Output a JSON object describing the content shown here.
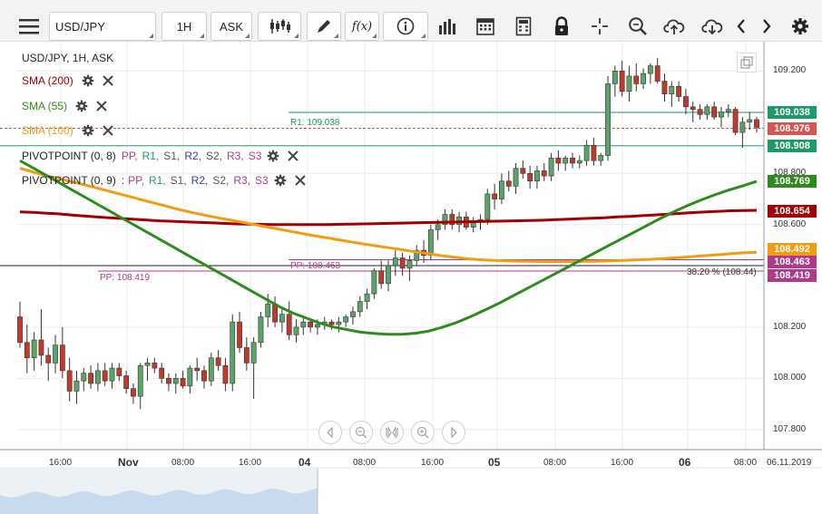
{
  "toolbar": {
    "symbol_value": "USD/JPY",
    "timeframe": "1H",
    "price_type": "ASK",
    "fx_label": "f(x)",
    "buttons": [
      "menu-icon",
      "candles-icon",
      "draw-icon",
      "fx-icon",
      "info-icon",
      "bars-icon",
      "calendar-icon",
      "calculator-icon",
      "lock-icon",
      "crosshair-icon",
      "zoom-icon",
      "upload-icon",
      "download-icon",
      "prev-icon",
      "next-icon",
      "gear-icon"
    ]
  },
  "legend": {
    "instrument": "USD/JPY, 1H, ASK",
    "sma200": "SMA (200)",
    "sma55": "SMA (55)",
    "sma100": "SMA (100)",
    "pivot1": "PIVOTPOINT (0, 8)",
    "pivot1_ovl": "0.8",
    "pivot2": "PIVOTPOINT (0, 9)",
    "pivot_sep": ":",
    "parts": [
      "PP,",
      "R1,",
      "S1,",
      "R2,",
      "S2,",
      "R3,",
      "S3"
    ]
  },
  "colors": {
    "sma200": "#a00000",
    "sma55": "#2e8b1e",
    "sma100": "#f39c12",
    "bull": "#5aa469",
    "bear": "#c0392b",
    "r1": "#1e9a66",
    "pp": "#b03a8a",
    "pp_parts": [
      "#b03a8a",
      "#1e9a66",
      "#555555",
      "#3c3ca8",
      "#555555",
      "#b03a8a",
      "#b03a8a"
    ]
  },
  "chart_labels": {
    "r1": "R1: 109.038",
    "pp1": "PP: 108.463",
    "pp2": "PP: 108.419",
    "fib": "38.20 % (108.44)"
  },
  "price_tags": [
    {
      "label": "109.038",
      "price": 109.038,
      "bg": "#1e9a66"
    },
    {
      "label": "108.976",
      "price": 108.976,
      "bg": "#d9534f"
    },
    {
      "label": "108.908",
      "price": 108.908,
      "bg": "#1e9a66"
    },
    {
      "label": "108.769",
      "price": 108.769,
      "bg": "#2e8b1e"
    },
    {
      "label": "108.654",
      "price": 108.654,
      "bg": "#a00000"
    },
    {
      "label": "108.492",
      "price": 108.492,
      "bg": "#f39c12"
    },
    {
      "label": "108.463",
      "price": 108.463,
      "bg": "#b03a8a"
    },
    {
      "label": "108.419",
      "price": 108.419,
      "bg": "#b03a8a"
    }
  ],
  "y_axis": {
    "ticks": [
      "109.200",
      "108.800",
      "108.600",
      "108.200",
      "108.000",
      "107.800"
    ],
    "tick_values": [
      109.2,
      108.8,
      108.6,
      108.2,
      108.0,
      107.8
    ]
  },
  "x_axis": {
    "ticks": [
      {
        "label": "16:00",
        "bold": false
      },
      {
        "label": "Nov",
        "bold": true
      },
      {
        "label": "08:00",
        "bold": false
      },
      {
        "label": "16:00",
        "bold": false
      },
      {
        "label": "04",
        "bold": true
      },
      {
        "label": "08:00",
        "bold": false
      },
      {
        "label": "16:00",
        "bold": false
      },
      {
        "label": "05",
        "bold": true
      },
      {
        "label": "08:00",
        "bold": false
      },
      {
        "label": "16:00",
        "bold": false
      },
      {
        "label": "06",
        "bold": true
      },
      {
        "label": "08:00",
        "bold": false
      }
    ],
    "date_label": "06.11.2019"
  },
  "nav": [
    "prev-icon",
    "zoom-out-icon",
    "reset-zoom-icon",
    "zoom-in-icon",
    "next-icon"
  ],
  "chart_data": {
    "type": "candlestick",
    "title": "USD/JPY, 1H, ASK",
    "ylim": [
      107.75,
      109.3
    ],
    "candles": [
      [
        108.24,
        108.3,
        108.12,
        108.14
      ],
      [
        108.14,
        108.21,
        108.02,
        108.08
      ],
      [
        108.08,
        108.18,
        108.03,
        108.15
      ],
      [
        108.15,
        108.27,
        108.05,
        108.09
      ],
      [
        108.09,
        108.12,
        107.99,
        108.06
      ],
      [
        108.06,
        108.17,
        108.02,
        108.13
      ],
      [
        108.13,
        108.2,
        108.0,
        108.03
      ],
      [
        108.03,
        108.08,
        107.91,
        107.95
      ],
      [
        107.95,
        108.03,
        107.9,
        107.99
      ],
      [
        107.99,
        108.04,
        107.95,
        108.02
      ],
      [
        108.02,
        108.05,
        107.96,
        107.98
      ],
      [
        107.98,
        108.06,
        107.95,
        108.03
      ],
      [
        108.03,
        108.06,
        107.97,
        107.99
      ],
      [
        107.99,
        108.06,
        107.96,
        108.04
      ],
      [
        108.04,
        108.06,
        107.99,
        108.01
      ],
      [
        108.01,
        108.03,
        107.94,
        107.96
      ],
      [
        107.96,
        107.98,
        107.9,
        107.93
      ],
      [
        107.93,
        108.06,
        107.88,
        108.05
      ],
      [
        108.05,
        108.08,
        107.99,
        108.06
      ],
      [
        108.06,
        108.08,
        108.02,
        108.04
      ],
      [
        108.04,
        108.06,
        107.98,
        108.0
      ],
      [
        108.0,
        108.02,
        107.95,
        107.98
      ],
      [
        107.98,
        108.02,
        107.94,
        108.0
      ],
      [
        108.0,
        108.03,
        107.96,
        107.97
      ],
      [
        107.97,
        108.05,
        107.94,
        108.04
      ],
      [
        108.04,
        108.08,
        107.99,
        108.03
      ],
      [
        108.03,
        108.05,
        107.96,
        107.99
      ],
      [
        107.99,
        108.1,
        107.97,
        108.08
      ],
      [
        108.08,
        108.11,
        108.03,
        108.05
      ],
      [
        108.05,
        108.08,
        107.95,
        107.98
      ],
      [
        107.98,
        108.25,
        107.95,
        108.22
      ],
      [
        108.22,
        108.26,
        108.1,
        108.12
      ],
      [
        108.12,
        108.16,
        108.03,
        108.06
      ],
      [
        108.06,
        108.16,
        107.92,
        108.14
      ],
      [
        108.14,
        108.26,
        108.12,
        108.24
      ],
      [
        108.24,
        108.33,
        108.2,
        108.29
      ],
      [
        108.29,
        108.32,
        108.2,
        108.22
      ],
      [
        108.22,
        108.28,
        108.18,
        108.25
      ],
      [
        108.25,
        108.3,
        108.15,
        108.17
      ],
      [
        108.17,
        108.23,
        108.14,
        108.2
      ],
      [
        108.2,
        108.24,
        108.17,
        108.22
      ],
      [
        108.22,
        108.23,
        108.18,
        108.2
      ],
      [
        108.2,
        108.23,
        108.17,
        108.21
      ],
      [
        108.21,
        108.24,
        108.19,
        108.22
      ],
      [
        108.22,
        108.23,
        108.19,
        108.21
      ],
      [
        108.21,
        108.24,
        108.18,
        108.22
      ],
      [
        108.22,
        108.25,
        108.2,
        108.24
      ],
      [
        108.24,
        108.28,
        108.21,
        108.26
      ],
      [
        108.26,
        108.32,
        108.24,
        108.3
      ],
      [
        108.3,
        108.35,
        108.27,
        108.33
      ],
      [
        108.33,
        108.43,
        108.31,
        108.42
      ],
      [
        108.42,
        108.46,
        108.35,
        108.37
      ],
      [
        108.37,
        108.46,
        108.34,
        108.44
      ],
      [
        108.44,
        108.5,
        108.4,
        108.47
      ],
      [
        108.47,
        108.49,
        108.4,
        108.43
      ],
      [
        108.43,
        108.48,
        108.38,
        108.46
      ],
      [
        108.46,
        108.52,
        108.44,
        108.5
      ],
      [
        108.5,
        108.54,
        108.45,
        108.48
      ],
      [
        108.48,
        108.6,
        108.46,
        108.58
      ],
      [
        108.58,
        108.62,
        108.54,
        108.6
      ],
      [
        108.6,
        108.66,
        108.58,
        108.64
      ],
      [
        108.64,
        108.66,
        108.58,
        108.6
      ],
      [
        108.6,
        108.65,
        108.57,
        108.63
      ],
      [
        108.63,
        108.65,
        108.58,
        108.59
      ],
      [
        108.59,
        108.63,
        108.57,
        108.61
      ],
      [
        108.61,
        108.64,
        108.58,
        108.62
      ],
      [
        108.62,
        108.74,
        108.6,
        108.72
      ],
      [
        108.72,
        108.76,
        108.66,
        108.7
      ],
      [
        108.7,
        108.8,
        108.68,
        108.77
      ],
      [
        108.77,
        108.81,
        108.73,
        108.75
      ],
      [
        108.75,
        108.84,
        108.72,
        108.82
      ],
      [
        108.82,
        108.85,
        108.78,
        108.8
      ],
      [
        108.8,
        108.83,
        108.74,
        108.77
      ],
      [
        108.77,
        108.83,
        108.74,
        108.81
      ],
      [
        108.81,
        108.84,
        108.77,
        108.79
      ],
      [
        108.79,
        108.88,
        108.77,
        108.86
      ],
      [
        108.86,
        108.89,
        108.81,
        108.84
      ],
      [
        108.84,
        108.87,
        108.81,
        108.86
      ],
      [
        108.86,
        108.88,
        108.82,
        108.84
      ],
      [
        108.84,
        108.87,
        108.82,
        108.85
      ],
      [
        108.85,
        108.93,
        108.83,
        108.91
      ],
      [
        108.91,
        108.94,
        108.83,
        108.85
      ],
      [
        108.85,
        108.88,
        108.83,
        108.87
      ],
      [
        108.87,
        109.18,
        108.85,
        109.15
      ],
      [
        109.15,
        109.22,
        109.1,
        109.2
      ],
      [
        109.2,
        109.24,
        109.1,
        109.12
      ],
      [
        109.12,
        109.22,
        109.08,
        109.18
      ],
      [
        109.18,
        109.23,
        109.12,
        109.15
      ],
      [
        109.15,
        109.21,
        109.13,
        109.19
      ],
      [
        109.19,
        109.23,
        109.15,
        109.22
      ],
      [
        109.22,
        109.25,
        109.15,
        109.16
      ],
      [
        109.16,
        109.19,
        109.08,
        109.11
      ],
      [
        109.11,
        109.16,
        109.06,
        109.14
      ],
      [
        109.14,
        109.16,
        109.08,
        109.1
      ],
      [
        109.1,
        109.13,
        109.03,
        109.06
      ],
      [
        109.06,
        109.08,
        109.0,
        109.05
      ],
      [
        109.05,
        109.07,
        109.01,
        109.03
      ],
      [
        109.03,
        109.07,
        109.01,
        109.06
      ],
      [
        109.06,
        109.08,
        109.01,
        109.02
      ],
      [
        109.02,
        109.06,
        108.98,
        109.04
      ],
      [
        109.04,
        109.07,
        109.02,
        109.05
      ],
      [
        109.05,
        109.06,
        108.95,
        108.96
      ],
      [
        108.96,
        109.02,
        108.9,
        109.0
      ],
      [
        109.0,
        109.04,
        108.97,
        109.01
      ],
      [
        109.01,
        109.02,
        108.96,
        108.98
      ]
    ],
    "sma200": [
      108.65,
      108.648,
      108.645,
      108.642,
      108.638,
      108.634,
      108.63,
      108.627,
      108.624,
      108.621,
      108.618,
      108.615,
      108.613,
      108.611,
      108.609,
      108.607,
      108.605,
      108.603,
      108.602,
      108.601,
      108.6,
      108.6,
      108.6,
      108.6,
      108.6,
      108.601,
      108.602,
      108.603,
      108.604,
      108.605,
      108.606,
      108.607,
      108.608,
      108.609,
      108.61,
      108.611,
      108.612,
      108.613,
      108.614,
      108.615,
      108.616,
      108.617,
      108.619,
      108.621,
      108.623,
      108.625,
      108.627,
      108.63,
      108.632,
      108.635,
      108.638,
      108.641,
      108.644,
      108.647,
      108.65,
      108.652,
      108.654,
      108.655,
      108.656
    ],
    "sma55": [
      108.85,
      108.82,
      108.79,
      108.76,
      108.73,
      108.7,
      108.67,
      108.64,
      108.61,
      108.58,
      108.55,
      108.52,
      108.49,
      108.46,
      108.43,
      108.4,
      108.37,
      108.34,
      108.31,
      108.28,
      108.255,
      108.235,
      108.215,
      108.2,
      108.19,
      108.18,
      108.175,
      108.172,
      108.172,
      108.176,
      108.185,
      108.2,
      108.218,
      108.24,
      108.265,
      108.29,
      108.318,
      108.346,
      108.374,
      108.402,
      108.43,
      108.458,
      108.486,
      108.514,
      108.542,
      108.57,
      108.598,
      108.626,
      108.652,
      108.676,
      108.698,
      108.718,
      108.736,
      108.752,
      108.769
    ],
    "sma100": [
      108.82,
      108.805,
      108.79,
      108.777,
      108.765,
      108.752,
      108.738,
      108.724,
      108.71,
      108.696,
      108.682,
      108.668,
      108.655,
      108.643,
      108.632,
      108.622,
      108.612,
      108.602,
      108.592,
      108.582,
      108.572,
      108.562,
      108.553,
      108.544,
      108.535,
      108.526,
      108.518,
      108.51,
      108.502,
      108.494,
      108.486,
      108.478,
      108.472,
      108.466,
      108.462,
      108.46,
      108.458,
      108.457,
      108.456,
      108.456,
      108.456,
      108.456,
      108.457,
      108.458,
      108.46,
      108.462,
      108.464,
      108.467,
      108.47,
      108.474,
      108.478,
      108.482,
      108.486,
      108.49,
      108.492
    ]
  }
}
